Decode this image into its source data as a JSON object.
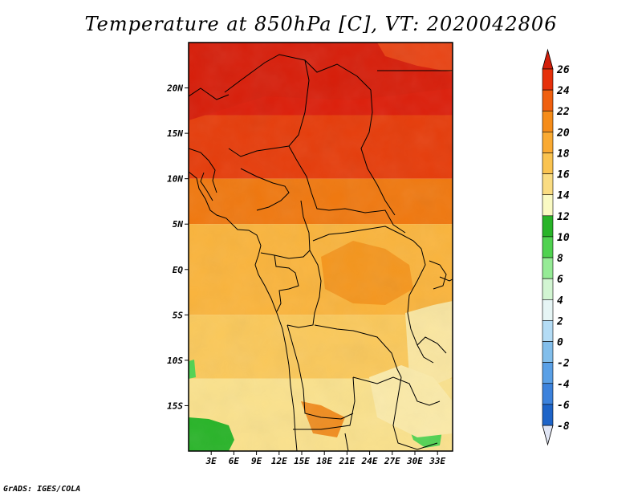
{
  "title": "Temperature at 850hPa [C], VT: 2020042806",
  "credit": "GrADS: IGES/COLA",
  "map": {
    "variable": "Temperature at 850hPa",
    "units": "C",
    "valid_time": "2020042806",
    "region": "Central Africa",
    "lon_range": [
      0,
      35
    ],
    "lat_range": [
      -20,
      25
    ],
    "x_ticks": [
      "3E",
      "6E",
      "9E",
      "12E",
      "15E",
      "18E",
      "21E",
      "24E",
      "27E",
      "30E",
      "33E"
    ],
    "x_tick_values": [
      3,
      6,
      9,
      12,
      15,
      18,
      21,
      24,
      27,
      30,
      33
    ],
    "y_ticks": [
      "20N",
      "15N",
      "10N",
      "5N",
      "EQ",
      "5S",
      "10S",
      "15S"
    ],
    "y_tick_values": [
      20,
      15,
      10,
      5,
      0,
      -5,
      -10,
      -15
    ],
    "field_bands": [
      {
        "lat_min": 17,
        "lat_max": 25,
        "value_range": "24-26",
        "color": "#dc1e0a"
      },
      {
        "lat_min": 10,
        "lat_max": 17,
        "value_range": "22-26",
        "color": "#e63c0a"
      },
      {
        "lat_min": 5,
        "lat_max": 10,
        "value_range": "20-22",
        "color": "#f0780f"
      },
      {
        "lat_min": -5,
        "lat_max": 5,
        "value_range": "18-20",
        "color": "#fab43c"
      },
      {
        "lat_min": -12,
        "lat_max": -5,
        "value_range": "16-20",
        "color": "#fac85a"
      },
      {
        "lat_min": -20,
        "lat_max": -12,
        "value_range": "12-18",
        "color": "#fae18c"
      }
    ]
  },
  "colorbar": {
    "levels": [
      "26",
      "24",
      "22",
      "20",
      "18",
      "16",
      "14",
      "12",
      "10",
      "8",
      "6",
      "4",
      "2",
      "0",
      "-2",
      "-4",
      "-6",
      "-8"
    ],
    "level_values": [
      26,
      24,
      22,
      20,
      18,
      16,
      14,
      12,
      10,
      8,
      6,
      4,
      2,
      0,
      -2,
      -4,
      -6,
      -8
    ],
    "colors": [
      "#d21e0a",
      "#e6460a",
      "#f06414",
      "#f5961e",
      "#faaf37",
      "#fac864",
      "#fae196",
      "#fafac8",
      "#28b428",
      "#50d250",
      "#96eb96",
      "#c8f5c8",
      "#e1f5f5",
      "#b4dcf5",
      "#82c3f0",
      "#5aa5eb",
      "#3c87e1",
      "#1e69d2",
      "#1450be",
      "#0a32a0",
      "#050f6e"
    ],
    "top_triangle_color": "#d21e0a",
    "bottom_triangle_color": "#e1e6f5"
  }
}
